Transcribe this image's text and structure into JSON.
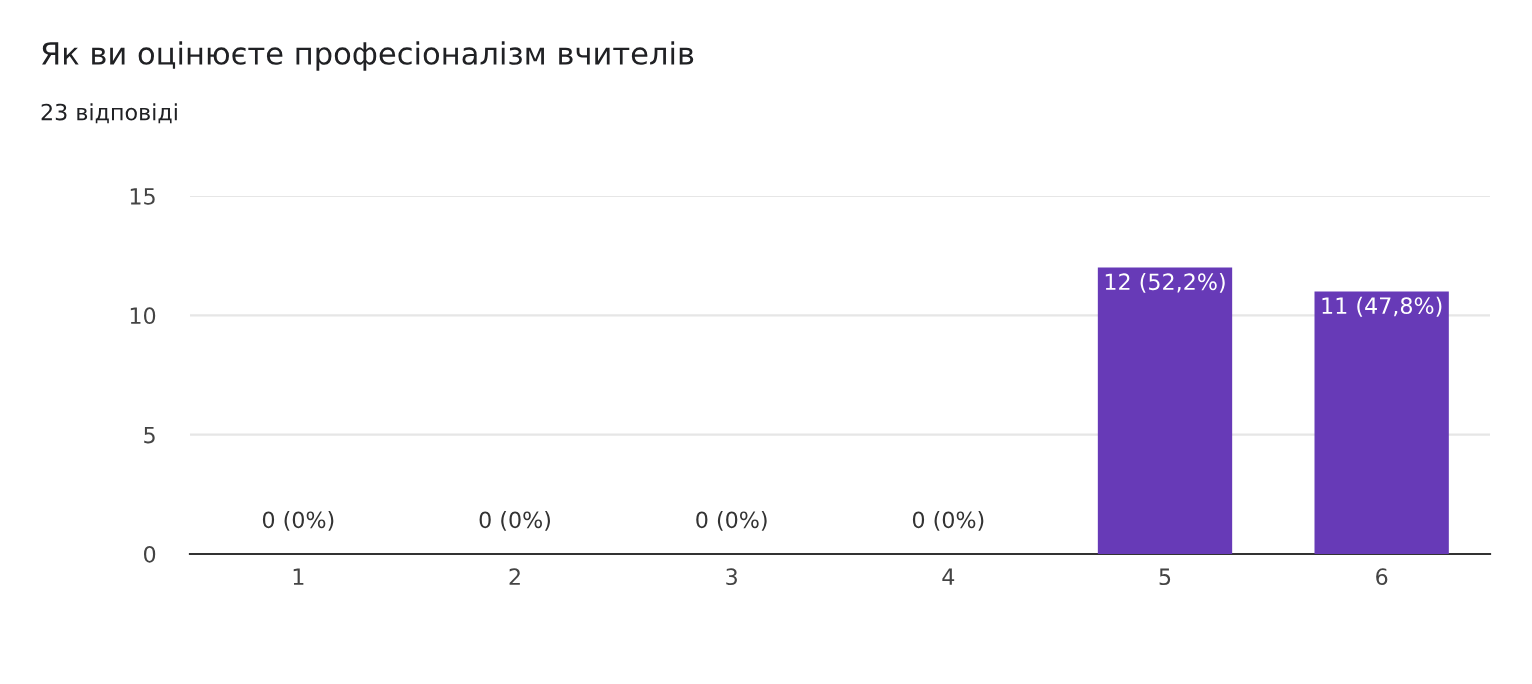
{
  "chart_data": {
    "type": "bar",
    "title": "Як ви оцінюєте професіоналізм вчителів",
    "subtitle": "23 відповіді",
    "categories": [
      "1",
      "2",
      "3",
      "4",
      "5",
      "6"
    ],
    "values": [
      0,
      0,
      0,
      0,
      12,
      11
    ],
    "value_labels": [
      "0 (0%)",
      "0 (0%)",
      "0 (0%)",
      "0 (0%)",
      "12 (52,2%)",
      "11 (47,8%)"
    ],
    "color": "#673ab7",
    "ylim": [
      0,
      15
    ],
    "yticks": [
      0,
      5,
      10,
      15
    ],
    "grid": "y"
  }
}
